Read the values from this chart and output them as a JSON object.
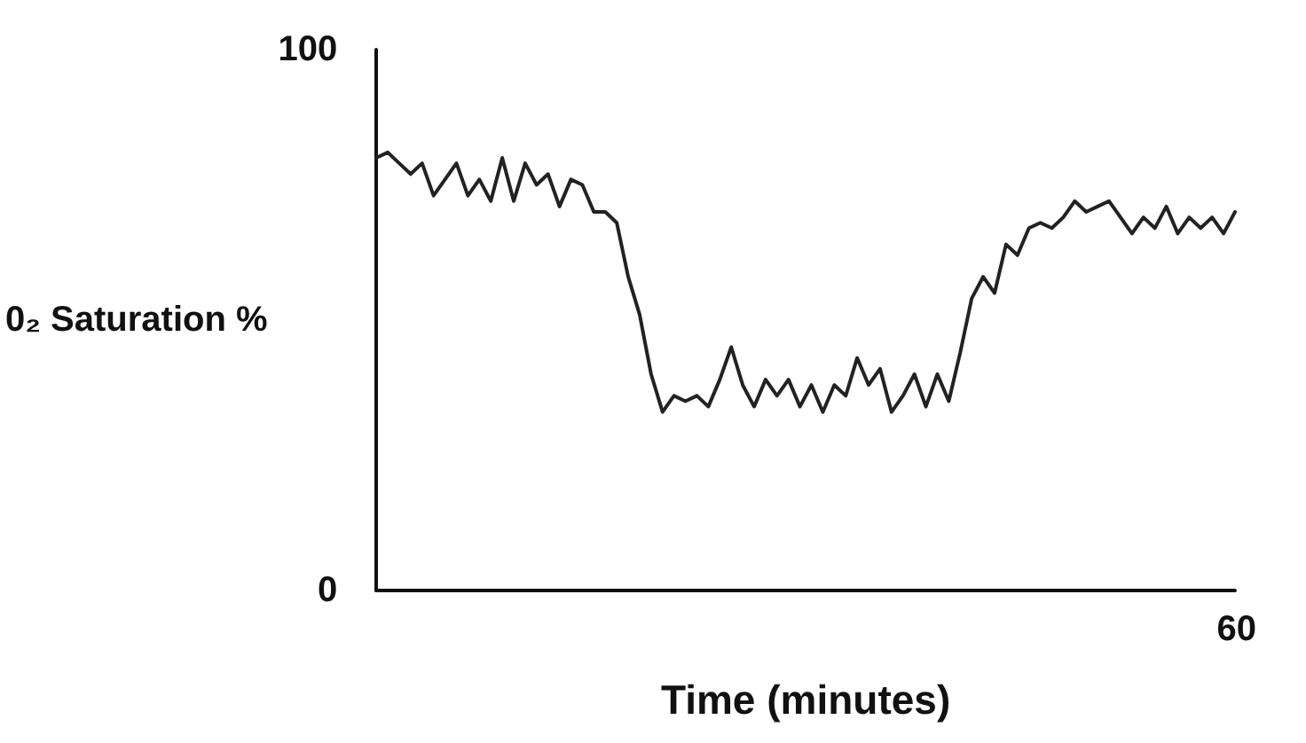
{
  "chart_data": {
    "type": "line",
    "xlabel": "Time (minutes)",
    "ylabel": "0₂ Saturation %",
    "annotations": [
      "60"
    ],
    "categories": [
      null,
      null,
      null,
      null,
      null,
      null,
      null,
      null,
      null,
      null,
      null,
      null,
      null,
      null,
      null,
      null,
      null,
      null,
      null,
      null,
      null,
      null,
      null,
      null,
      null,
      null,
      null,
      null,
      null,
      null,
      null,
      null,
      null,
      null,
      null,
      null,
      null,
      null,
      null,
      null,
      null,
      null,
      null,
      null,
      null,
      null,
      null,
      null,
      null,
      null,
      null,
      null,
      null,
      null,
      null,
      null,
      null,
      null,
      null,
      null,
      null,
      null,
      null,
      null,
      null,
      null,
      null,
      null,
      null,
      null,
      null,
      null,
      null,
      null,
      null,
      null
    ],
    "ylim": [
      0,
      100
    ],
    "yticks": [
      0,
      100
    ],
    "grid": false,
    "marker": "none",
    "line_style": "solid",
    "series": [
      {
        "color": "#222222",
        "values": [
          80,
          81,
          79,
          77,
          79,
          73,
          76,
          79,
          73,
          76,
          72,
          80,
          72,
          79,
          75,
          77,
          71,
          76,
          75,
          70,
          70,
          68,
          58,
          51,
          40,
          33,
          36,
          35,
          36,
          34,
          39,
          45,
          38,
          34,
          39,
          36,
          39,
          34,
          38,
          33,
          38,
          36,
          43,
          38,
          41,
          33,
          36,
          40,
          34,
          40,
          35,
          44,
          54,
          58,
          55,
          64,
          62,
          67,
          68,
          67,
          69,
          72,
          70,
          71,
          72,
          69,
          66,
          69,
          67,
          71,
          66,
          69,
          67,
          69,
          66,
          70
        ]
      }
    ]
  }
}
